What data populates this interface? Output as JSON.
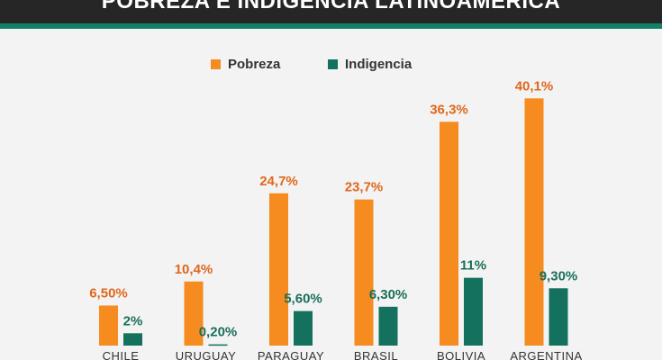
{
  "colors": {
    "header_bg": "#262626",
    "header_accent": "#14806a",
    "pobreza": "#f68b1f",
    "indigencia": "#14715e",
    "pobreza_label": "#e0671b",
    "indigencia_label": "#1a6e5b"
  },
  "chart_data": {
    "type": "bar",
    "title": "POBREZA E INDIGENCIA LATINOAMERICA",
    "categories": [
      "CHILE",
      "URUGUAY",
      "PARAGUAY",
      "BRASIL",
      "BOLIVIA",
      "ARGENTINA"
    ],
    "series": [
      {
        "name": "Pobreza",
        "values": [
          6.5,
          10.4,
          24.7,
          23.7,
          36.3,
          40.1
        ],
        "labels": [
          "6,50%",
          "10,4%",
          "24,7%",
          "23,7%",
          "36,3%",
          "40,1%"
        ]
      },
      {
        "name": "Indigencia",
        "values": [
          2,
          0.2,
          5.6,
          6.3,
          11,
          9.3
        ],
        "labels": [
          "2%",
          "0,20%",
          "5,60%",
          "6,30%",
          "11%",
          "9,30%"
        ]
      }
    ],
    "legend_position": "top-center",
    "grid": false
  }
}
